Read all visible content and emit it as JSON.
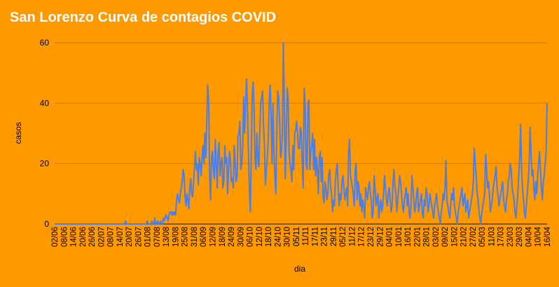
{
  "chart_data": {
    "type": "line",
    "title": "San Lorenzo Curva de contagios COVID",
    "xlabel": "dia",
    "ylabel": "casos",
    "ylim": [
      0,
      60
    ],
    "yticks": [
      0,
      20,
      40,
      60
    ],
    "grid": true,
    "legend": "none",
    "xticks": [
      "02/06",
      "08/06",
      "14/06",
      "20/06",
      "26/06",
      "02/07",
      "08/07",
      "14/07",
      "20/07",
      "26/07",
      "01/08",
      "07/08",
      "13/08",
      "19/08",
      "25/08",
      "31/08",
      "06/09",
      "12/09",
      "18/09",
      "24/09",
      "30/09",
      "06/10",
      "12/10",
      "18/10",
      "24/10",
      "30/10",
      "05/11",
      "11/11",
      "17/11",
      "23/11",
      "29/11",
      "05/12",
      "11/12",
      "17/12",
      "23/12",
      "29/12",
      "04/01",
      "10/01",
      "16/01",
      "22/01",
      "28/01",
      "03/02",
      "09/02",
      "15/02",
      "21/02",
      "27/02",
      "05/03",
      "11/03",
      "17/03",
      "23/03",
      "29/03",
      "04/04",
      "10/04",
      "16/04"
    ],
    "x_start": "02/06",
    "x_end": "16/04",
    "series": [
      {
        "color": "#4a7ee8",
        "values": [
          0,
          0,
          0,
          0,
          0,
          0,
          0,
          0,
          0,
          0,
          0,
          0,
          0,
          0,
          0,
          0,
          0,
          0,
          0,
          0,
          0,
          0,
          0,
          0,
          0,
          0,
          0,
          0,
          0,
          0,
          0,
          0,
          0,
          0,
          0,
          0,
          0,
          0,
          0,
          0,
          0,
          0,
          0,
          0,
          0,
          0,
          0,
          0,
          0,
          0,
          0,
          0,
          0,
          0,
          0,
          0,
          0,
          0,
          0,
          0,
          0,
          0,
          0,
          0,
          0,
          0,
          0,
          0,
          0,
          0,
          0,
          0,
          0,
          0,
          0,
          1,
          0,
          0,
          0,
          0,
          0,
          0,
          0,
          0,
          0,
          0,
          0,
          0,
          0,
          0,
          0,
          0,
          0,
          0,
          0,
          0,
          0,
          0,
          1,
          0,
          0,
          0,
          0,
          1,
          0,
          0,
          2,
          0,
          0,
          1,
          0,
          0,
          1,
          0,
          0,
          2,
          1,
          2,
          3,
          2,
          1,
          3,
          4,
          4,
          3,
          4,
          3,
          4,
          3,
          8,
          10,
          8,
          7,
          10,
          12,
          14,
          18,
          16,
          9,
          6,
          10,
          8,
          5,
          12,
          15,
          10,
          9,
          14,
          19,
          24,
          18,
          20,
          13,
          22,
          20,
          16,
          22,
          26,
          20,
          30,
          22,
          35,
          46,
          40,
          16,
          8,
          22,
          24,
          18,
          15,
          28,
          20,
          12,
          24,
          27,
          16,
          20,
          22,
          12,
          14,
          26,
          20,
          22,
          10,
          18,
          24,
          21,
          14,
          15,
          12,
          26,
          20,
          14,
          16,
          29,
          30,
          34,
          18,
          20,
          26,
          42,
          30,
          40,
          48,
          38,
          24,
          12,
          4,
          22,
          42,
          47,
          38,
          22,
          18,
          30,
          22,
          19,
          30,
          40,
          42,
          44,
          32,
          26,
          13,
          18,
          22,
          28,
          40,
          46,
          36,
          20,
          40,
          24,
          16,
          10,
          30,
          44,
          42,
          35,
          22,
          24,
          30,
          60,
          40,
          15,
          28,
          45,
          42,
          24,
          20,
          18,
          14,
          26,
          18,
          30,
          31,
          34,
          30,
          25,
          25,
          32,
          30,
          20,
          12,
          45,
          40,
          20,
          18,
          40,
          41,
          18,
          24,
          26,
          30,
          18,
          28,
          16,
          22,
          18,
          10,
          22,
          24,
          14,
          22,
          9,
          7,
          14,
          12,
          8,
          10,
          16,
          18,
          12,
          10,
          4,
          8,
          6,
          14,
          18,
          20,
          12,
          6,
          10,
          8,
          14,
          16,
          12,
          8,
          10,
          12,
          6,
          24,
          28,
          16,
          14,
          12,
          10,
          6,
          18,
          20,
          8,
          14,
          12,
          6,
          10,
          4,
          8,
          6,
          2,
          12,
          10,
          8,
          12,
          14,
          10,
          8,
          2,
          4,
          16,
          12,
          6,
          8,
          10,
          2,
          6,
          8,
          4,
          6,
          10,
          16,
          12,
          8,
          6,
          10,
          12,
          8,
          4,
          6,
          14,
          18,
          12,
          10,
          4,
          8,
          12,
          16,
          14,
          10,
          6,
          4,
          8,
          10,
          12,
          6,
          10,
          4,
          2,
          6,
          16,
          12,
          8,
          4,
          6,
          10,
          12,
          4,
          6,
          8,
          10,
          4,
          2,
          8,
          6,
          12,
          10,
          4,
          6,
          10,
          8,
          6,
          4,
          2,
          6,
          8,
          10,
          6,
          4,
          2,
          0,
          4,
          6,
          10,
          8,
          12,
          21,
          8,
          6,
          4,
          2,
          6,
          10,
          8,
          12,
          6,
          4,
          2,
          0,
          4,
          6,
          8,
          10,
          12,
          6,
          8,
          10,
          4,
          6,
          8,
          2,
          4,
          6,
          8,
          10,
          14,
          25,
          20,
          16,
          10,
          8,
          4,
          2,
          0,
          4,
          6,
          8,
          10,
          23,
          18,
          12,
          14,
          10,
          4,
          6,
          8,
          12,
          14,
          16,
          19,
          12,
          10,
          6,
          8,
          10,
          12,
          14,
          8,
          6,
          4,
          8,
          10,
          14,
          16,
          20,
          18,
          12,
          10,
          8,
          4,
          2,
          6,
          10,
          16,
          22,
          33,
          18,
          12,
          8,
          4,
          2,
          6,
          10,
          14,
          20,
          32,
          24,
          16,
          18,
          12,
          8,
          14,
          10,
          16,
          20,
          24,
          18,
          12,
          8,
          14,
          16,
          20,
          24,
          40
        ]
      }
    ]
  }
}
